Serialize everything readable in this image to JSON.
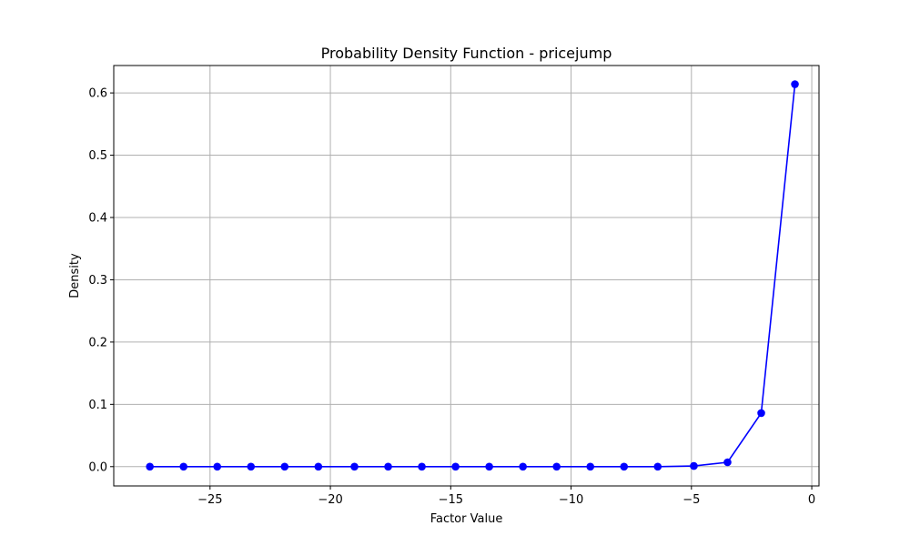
{
  "chart_data": {
    "type": "line",
    "title": "Probability Density Function - pricejump",
    "xlabel": "Factor Value",
    "ylabel": "Density",
    "xlim": [
      -29.0,
      0.3
    ],
    "ylim": [
      -0.031,
      0.644
    ],
    "xticks": [
      -25,
      -20,
      -15,
      -10,
      -5,
      0
    ],
    "xtick_labels": [
      "−25",
      "−20",
      "−15",
      "−10",
      "−5",
      "0"
    ],
    "yticks": [
      0.0,
      0.1,
      0.2,
      0.3,
      0.4,
      0.5,
      0.6
    ],
    "ytick_labels": [
      "0.0",
      "0.1",
      "0.2",
      "0.3",
      "0.4",
      "0.5",
      "0.6"
    ],
    "grid": true,
    "line_color": "#0000ff",
    "series": [
      {
        "x": [
          -27.5,
          -26.1,
          -24.7,
          -23.3,
          -21.9,
          -20.5,
          -19.0,
          -17.6,
          -16.2,
          -14.8,
          -13.4,
          -12.0,
          -10.6,
          -9.2,
          -7.8,
          -6.4,
          -4.9,
          -3.5,
          -2.1,
          -0.7
        ],
        "values": [
          0.0,
          0.0,
          0.0,
          0.0,
          0.0,
          0.0,
          0.0,
          0.0,
          0.0,
          0.0,
          0.0,
          0.0,
          0.0,
          0.0,
          0.0,
          0.0,
          0.001,
          0.007,
          0.086,
          0.614
        ]
      }
    ]
  }
}
